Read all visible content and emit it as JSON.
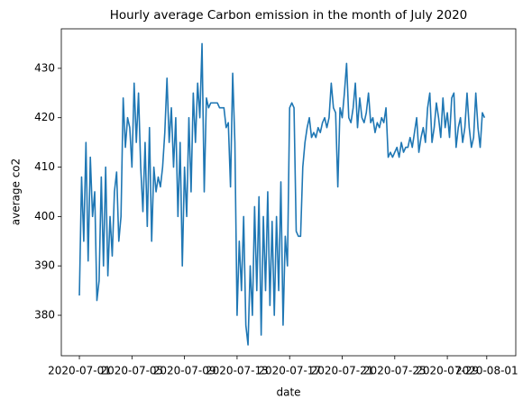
{
  "chart_data": {
    "type": "line",
    "title": "Hourly average Carbon emission in the month of July 2020",
    "xlabel": "date",
    "ylabel": "average co2",
    "xlim": [
      "2020-06-29 15:00",
      "2020-08-03 05:00"
    ],
    "xticks": [
      "2020-07-01",
      "2020-07-05",
      "2020-07-09",
      "2020-07-13",
      "2020-07-17",
      "2020-07-21",
      "2020-07-25",
      "2020-07-29",
      "2020-08-01"
    ],
    "ylim": [
      371.8,
      438.0
    ],
    "yticks": [
      380,
      390,
      400,
      410,
      420,
      430
    ],
    "grid": false,
    "x": [
      "2020-07-01 00:00",
      "2020-07-01 04:00",
      "2020-07-01 08:00",
      "2020-07-01 12:00",
      "2020-07-01 16:00",
      "2020-07-01 20:00",
      "2020-07-02 00:00",
      "2020-07-02 04:00",
      "2020-07-02 08:00",
      "2020-07-02 12:00",
      "2020-07-02 16:00",
      "2020-07-02 20:00",
      "2020-07-03 00:00",
      "2020-07-03 04:00",
      "2020-07-03 08:00",
      "2020-07-03 12:00",
      "2020-07-03 16:00",
      "2020-07-03 20:00",
      "2020-07-04 00:00",
      "2020-07-04 04:00",
      "2020-07-04 08:00",
      "2020-07-04 12:00",
      "2020-07-04 16:00",
      "2020-07-04 20:00",
      "2020-07-05 00:00",
      "2020-07-05 04:00",
      "2020-07-05 08:00",
      "2020-07-05 12:00",
      "2020-07-05 16:00",
      "2020-07-05 20:00",
      "2020-07-06 00:00",
      "2020-07-06 04:00",
      "2020-07-06 08:00",
      "2020-07-06 12:00",
      "2020-07-06 16:00",
      "2020-07-06 20:00",
      "2020-07-07 00:00",
      "2020-07-07 04:00",
      "2020-07-07 08:00",
      "2020-07-07 12:00",
      "2020-07-07 16:00",
      "2020-07-07 20:00",
      "2020-07-08 00:00",
      "2020-07-08 04:00",
      "2020-07-08 08:00",
      "2020-07-08 12:00",
      "2020-07-08 16:00",
      "2020-07-08 20:00",
      "2020-07-09 00:00",
      "2020-07-09 04:00",
      "2020-07-09 08:00",
      "2020-07-09 12:00",
      "2020-07-09 16:00",
      "2020-07-09 20:00",
      "2020-07-10 00:00",
      "2020-07-10 04:00",
      "2020-07-10 08:00",
      "2020-07-10 12:00",
      "2020-07-10 16:00",
      "2020-07-10 20:00",
      "2020-07-11 00:00",
      "2020-07-11 04:00",
      "2020-07-11 08:00",
      "2020-07-11 12:00",
      "2020-07-11 16:00",
      "2020-07-11 20:00",
      "2020-07-12 00:00",
      "2020-07-12 04:00",
      "2020-07-12 08:00",
      "2020-07-12 12:00",
      "2020-07-12 16:00",
      "2020-07-12 20:00",
      "2020-07-13 00:00",
      "2020-07-13 04:00",
      "2020-07-13 08:00",
      "2020-07-13 12:00",
      "2020-07-13 16:00",
      "2020-07-13 20:00",
      "2020-07-14 00:00",
      "2020-07-14 04:00",
      "2020-07-14 08:00",
      "2020-07-14 12:00",
      "2020-07-14 16:00",
      "2020-07-14 20:00",
      "2020-07-15 00:00",
      "2020-07-15 04:00",
      "2020-07-15 08:00",
      "2020-07-15 12:00",
      "2020-07-15 16:00",
      "2020-07-15 20:00",
      "2020-07-16 00:00",
      "2020-07-16 04:00",
      "2020-07-16 08:00",
      "2020-07-16 12:00",
      "2020-07-16 16:00",
      "2020-07-16 20:00",
      "2020-07-17 00:00",
      "2020-07-17 04:00",
      "2020-07-17 08:00",
      "2020-07-17 12:00",
      "2020-07-17 16:00",
      "2020-07-17 20:00",
      "2020-07-18 00:00",
      "2020-07-18 04:00",
      "2020-07-18 08:00",
      "2020-07-18 12:00",
      "2020-07-18 16:00",
      "2020-07-18 20:00",
      "2020-07-19 00:00",
      "2020-07-19 04:00",
      "2020-07-19 08:00",
      "2020-07-19 12:00",
      "2020-07-19 16:00",
      "2020-07-19 20:00",
      "2020-07-20 00:00",
      "2020-07-20 04:00",
      "2020-07-20 08:00",
      "2020-07-20 12:00",
      "2020-07-20 16:00",
      "2020-07-20 20:00",
      "2020-07-21 00:00",
      "2020-07-21 04:00",
      "2020-07-21 08:00",
      "2020-07-21 12:00",
      "2020-07-21 16:00",
      "2020-07-21 20:00",
      "2020-07-22 00:00",
      "2020-07-22 04:00",
      "2020-07-22 08:00",
      "2020-07-22 12:00",
      "2020-07-22 16:00",
      "2020-07-22 20:00",
      "2020-07-23 00:00",
      "2020-07-23 04:00",
      "2020-07-23 08:00",
      "2020-07-23 12:00",
      "2020-07-23 16:00",
      "2020-07-23 20:00",
      "2020-07-24 00:00",
      "2020-07-24 04:00",
      "2020-07-24 08:00",
      "2020-07-24 12:00",
      "2020-07-24 16:00",
      "2020-07-24 20:00",
      "2020-07-25 00:00",
      "2020-07-25 04:00",
      "2020-07-25 08:00",
      "2020-07-25 12:00",
      "2020-07-25 16:00",
      "2020-07-25 20:00",
      "2020-07-26 00:00",
      "2020-07-26 04:00",
      "2020-07-26 08:00",
      "2020-07-26 12:00",
      "2020-07-26 16:00",
      "2020-07-26 20:00",
      "2020-07-27 00:00",
      "2020-07-27 04:00",
      "2020-07-27 08:00",
      "2020-07-27 12:00",
      "2020-07-27 16:00",
      "2020-07-27 20:00",
      "2020-07-28 00:00",
      "2020-07-28 04:00",
      "2020-07-28 08:00",
      "2020-07-28 12:00",
      "2020-07-28 16:00",
      "2020-07-28 20:00",
      "2020-07-29 00:00",
      "2020-07-29 04:00",
      "2020-07-29 08:00",
      "2020-07-29 12:00",
      "2020-07-29 16:00",
      "2020-07-29 20:00",
      "2020-07-30 00:00",
      "2020-07-30 04:00",
      "2020-07-30 08:00",
      "2020-07-30 12:00",
      "2020-07-30 16:00",
      "2020-07-30 20:00",
      "2020-07-31 00:00",
      "2020-07-31 04:00",
      "2020-07-31 08:00",
      "2020-07-31 12:00",
      "2020-07-31 16:00",
      "2020-07-31 20:00"
    ],
    "series": [
      {
        "name": "co2",
        "color": "#1f77b4",
        "values": [
          384,
          408,
          395,
          415,
          391,
          412,
          400,
          405,
          383,
          387,
          408,
          390,
          410,
          388,
          400,
          392,
          405,
          409,
          395,
          400,
          424,
          414,
          420,
          418,
          410,
          427,
          415,
          425,
          410,
          401,
          415,
          398,
          418,
          395,
          410,
          405,
          408,
          406,
          410,
          417,
          428,
          415,
          422,
          410,
          420,
          400,
          415,
          390,
          410,
          400,
          420,
          405,
          425,
          415,
          427,
          420,
          435,
          405,
          424,
          422,
          423,
          423,
          423,
          423,
          422,
          422,
          422,
          418,
          419,
          406,
          429,
          415,
          380,
          395,
          385,
          400,
          378,
          374,
          390,
          380,
          402,
          385,
          404,
          376,
          400,
          385,
          405,
          382,
          399,
          380,
          400,
          385,
          407,
          378,
          396,
          390,
          422,
          423,
          422,
          397,
          396,
          396,
          410,
          415,
          418,
          420,
          416,
          417,
          416,
          418,
          417,
          419,
          420,
          418,
          420,
          427,
          422,
          421,
          406,
          422,
          420,
          425,
          431,
          420,
          419,
          422,
          427,
          418,
          424,
          420,
          419,
          421,
          425,
          419,
          420,
          417,
          419,
          418,
          420,
          419,
          422,
          412,
          413,
          412,
          413,
          414,
          412,
          415,
          413,
          414,
          414,
          416,
          414,
          417,
          420,
          413,
          416,
          418,
          415,
          422,
          425,
          415,
          418,
          423,
          420,
          416,
          424,
          418,
          421,
          416,
          424,
          425,
          414,
          418,
          420,
          415,
          418,
          425,
          418,
          414,
          416,
          425,
          418,
          414,
          421,
          420
        ]
      }
    ]
  }
}
